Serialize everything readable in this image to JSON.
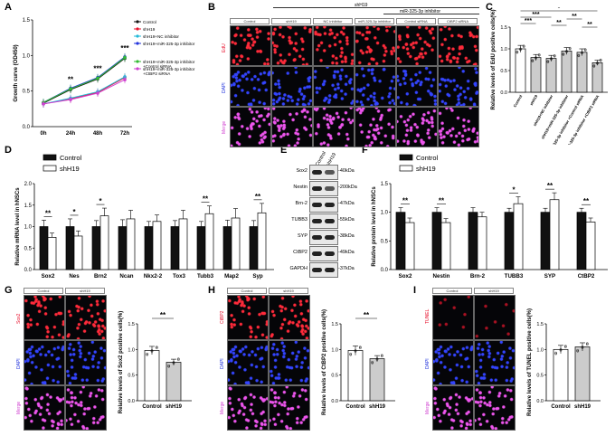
{
  "panels": {
    "A": {
      "letter": "A"
    },
    "B": {
      "letter": "B"
    },
    "C": {
      "letter": "C"
    },
    "D": {
      "letter": "D"
    },
    "E": {
      "letter": "E"
    },
    "F": {
      "letter": "F"
    },
    "G": {
      "letter": "G"
    },
    "H": {
      "letter": "H"
    },
    "I": {
      "letter": "I"
    }
  },
  "colors": {
    "red": "#e8112d",
    "blue": "#2233dd",
    "magenta": "#d040d0",
    "black": "#111111",
    "grey": "#cccccc"
  },
  "chart_data": [
    {
      "panel": "A",
      "type": "line",
      "ylabel": "Growth curve (OD450)",
      "categories": [
        "0h",
        "24h",
        "48h",
        "72h"
      ],
      "ylim": [
        0,
        1.5
      ],
      "yticks": [
        "0.0",
        "0.5",
        "1.0",
        "1.5"
      ],
      "series": [
        {
          "name": "Control",
          "values": [
            0.33,
            0.52,
            0.67,
            0.96
          ],
          "color": "#111111"
        },
        {
          "name": "shH19",
          "values": [
            0.32,
            0.39,
            0.48,
            0.69
          ],
          "color": "#e8112d"
        },
        {
          "name": "shH19+NC inhibitor",
          "values": [
            0.32,
            0.4,
            0.49,
            0.7
          ],
          "color": "#22b8d8"
        },
        {
          "name": "shH19+miR-325-3p inhibitor",
          "values": [
            0.34,
            0.54,
            0.69,
            0.98
          ],
          "color": "#2233dd"
        },
        {
          "name": "shH19+miR-325-3p inhibitor +Control siRNA",
          "values": [
            0.34,
            0.53,
            0.68,
            0.97
          ],
          "color": "#33bb33"
        },
        {
          "name": "shH19+miR-325-3p inhibitor +CtBP2 siRNA",
          "values": [
            0.32,
            0.38,
            0.47,
            0.66
          ],
          "color": "#d040d0"
        }
      ],
      "annotations": [
        "**",
        "***",
        "***"
      ]
    },
    {
      "panel": "C",
      "type": "bar",
      "ylabel": "Relative levels of EdU positive cells(%)",
      "ylim": [
        0,
        1.5
      ],
      "yticks": [
        "0.0",
        "0.5",
        "1.0",
        "1.5"
      ],
      "categories": [
        "Control",
        "shH19",
        "shH19+NC inhibitor",
        "shH19+miR-325-3p inhibitor",
        "shH19+miR-325-3p inhibitor +Control siRNA",
        "shH19+miR-325-3p inhibitor +CtBP2 siRNA"
      ],
      "values": [
        1.0,
        0.8,
        0.78,
        0.95,
        0.92,
        0.68
      ],
      "errors": [
        0.08,
        0.07,
        0.07,
        0.08,
        0.08,
        0.06
      ],
      "bar_colors": [
        "#ffffff",
        "#cccccc",
        "#cccccc",
        "#cccccc",
        "#cccccc",
        "#cccccc"
      ],
      "significance": [
        "***",
        "***",
        "*",
        "**",
        "**",
        "**"
      ]
    },
    {
      "panel": "D",
      "type": "bar",
      "ylabel": "Relative mRNA level in hNSCs",
      "ylim": [
        0,
        2.0
      ],
      "yticks": [
        "0.0",
        "0.5",
        "1.0",
        "1.5",
        "2.0"
      ],
      "categories": [
        "Sox2",
        "Nes",
        "Brn2",
        "Ncan",
        "Nkx2-2",
        "Tox3",
        "Tubb3",
        "Map2",
        "Syp"
      ],
      "series": [
        {
          "name": "Control",
          "values": [
            1.0,
            1.0,
            1.0,
            1.0,
            1.0,
            1.0,
            1.0,
            1.0,
            1.0
          ],
          "errors": [
            0.15,
            0.18,
            0.14,
            0.16,
            0.12,
            0.14,
            0.12,
            0.15,
            0.14
          ],
          "color": "#111111"
        },
        {
          "name": "shH19",
          "values": [
            0.75,
            0.78,
            1.25,
            1.18,
            1.12,
            1.18,
            1.3,
            1.2,
            1.32
          ],
          "errors": [
            0.1,
            0.12,
            0.18,
            0.2,
            0.15,
            0.2,
            0.18,
            0.22,
            0.22
          ],
          "color": "#ffffff"
        }
      ],
      "significance": [
        "**",
        "*",
        "*",
        "",
        "",
        "",
        "**",
        "",
        "**"
      ]
    },
    {
      "panel": "F",
      "type": "bar",
      "ylabel": "Relative protein level in hNSCs",
      "ylim": [
        0,
        1.5
      ],
      "yticks": [
        "0.0",
        "0.5",
        "1.0",
        "1.5"
      ],
      "categories": [
        "Sox2",
        "Nestin",
        "Brn-2",
        "TUBB3",
        "SYP",
        "CtBP2"
      ],
      "series": [
        {
          "name": "Control",
          "values": [
            1.0,
            1.0,
            1.0,
            1.0,
            1.0,
            1.0
          ],
          "errors": [
            0.08,
            0.08,
            0.08,
            0.07,
            0.07,
            0.07
          ],
          "color": "#111111"
        },
        {
          "name": "shH19",
          "values": [
            0.82,
            0.82,
            0.92,
            1.15,
            1.22,
            0.83
          ],
          "errors": [
            0.08,
            0.07,
            0.08,
            0.12,
            0.12,
            0.07
          ],
          "color": "#ffffff"
        }
      ],
      "significance": [
        "**",
        "**",
        "",
        "*",
        "**",
        "**"
      ]
    },
    {
      "panel": "G",
      "type": "bar",
      "ylabel": "Relative levels of Sox2 positive cells(%)",
      "ylim": [
        0,
        1.5
      ],
      "yticks": [
        "0.0",
        "0.5",
        "1.0",
        "1.5"
      ],
      "categories": [
        "Control",
        "shH19"
      ],
      "values": [
        0.98,
        0.75
      ],
      "errors": [
        0.08,
        0.06
      ],
      "bar_colors": [
        "#ffffff",
        "#cccccc"
      ],
      "significance": [
        "**"
      ]
    },
    {
      "panel": "H",
      "type": "bar",
      "ylabel": "Relative levels of CtBP2 positive cells(%)",
      "ylim": [
        0,
        1.5
      ],
      "yticks": [
        "0.0",
        "0.5",
        "1.0",
        "1.5"
      ],
      "categories": [
        "Control",
        "shH19"
      ],
      "values": [
        0.98,
        0.82
      ],
      "errors": [
        0.09,
        0.06
      ],
      "bar_colors": [
        "#ffffff",
        "#cccccc"
      ],
      "significance": [
        "**"
      ]
    },
    {
      "panel": "I",
      "type": "bar",
      "ylabel": "Relative levels of TUNEL positive cells(%)",
      "ylim": [
        0,
        1.5
      ],
      "yticks": [
        "0.0",
        "0.5",
        "1.0",
        "1.5"
      ],
      "categories": [
        "Control",
        "shH19"
      ],
      "values": [
        1.0,
        1.05
      ],
      "errors": [
        0.08,
        0.08
      ],
      "bar_colors": [
        "#ffffff",
        "#cccccc"
      ],
      "significance": []
    }
  ],
  "panelB": {
    "headers": [
      "Control",
      "shH19",
      "NC inhibitor",
      "miR-325-3p inhibitor",
      "Control siRNA",
      "CtBP2 siRNA"
    ],
    "group_top": "shH19",
    "group_sub": "miR-325-3p inhibitor",
    "rows": [
      "EdU",
      "DAPI",
      "Merge"
    ]
  },
  "panelE": {
    "headers": [
      "Control",
      "shH19"
    ],
    "proteins": [
      "Sox2",
      "Nestin",
      "Brn-2",
      "TUBB3",
      "SYP",
      "CtBP2",
      "GAPDH"
    ],
    "kda": [
      "40kDa",
      "200kDa",
      "47kDa",
      "55kDa",
      "38kDa",
      "49kDa",
      "37kDa"
    ]
  },
  "panelG": {
    "headers": [
      "Control",
      "shH19"
    ],
    "rows": [
      "Sox2",
      "DAPI",
      "Merge"
    ]
  },
  "panelH": {
    "headers": [
      "Control",
      "shH19"
    ],
    "rows": [
      "CtBP2",
      "DAPI",
      "Merge"
    ]
  },
  "panelI": {
    "headers": [
      "Control",
      "shH19"
    ],
    "rows": [
      "TUNEL",
      "DAPI",
      "Merge"
    ]
  }
}
